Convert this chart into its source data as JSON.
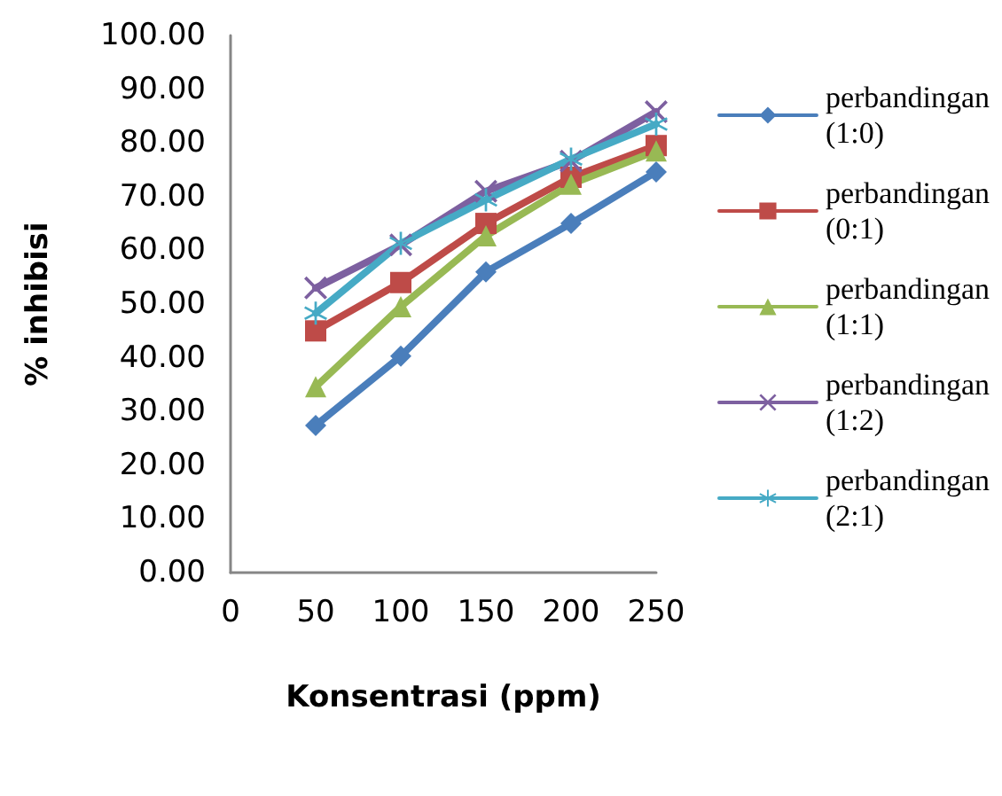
{
  "chart_data": {
    "type": "line",
    "xlabel": "Konsentrasi (ppm)",
    "ylabel": "% inhibisi",
    "x": [
      50,
      100,
      150,
      200,
      250
    ],
    "series": [
      {
        "name": "perbandingan (1:0)",
        "color": "#4a7ebb",
        "marker": "diamond",
        "values": [
          27.4,
          40.3,
          56,
          65,
          74.6
        ]
      },
      {
        "name": "perbandingan (0:1)",
        "color": "#be4b48",
        "marker": "square",
        "values": [
          45,
          54,
          65,
          73.6,
          79.5
        ]
      },
      {
        "name": "perbandingan (1:1)",
        "color": "#98b954",
        "marker": "triangle",
        "values": [
          34.6,
          49.5,
          62.7,
          72.3,
          78.5
        ]
      },
      {
        "name": "perbandingan (1:2)",
        "color": "#7d60a0",
        "marker": "cross",
        "values": [
          53,
          61,
          71,
          76.6,
          85.8
        ]
      },
      {
        "name": "perbandingan (2:1)",
        "color": "#46aac5",
        "marker": "star",
        "values": [
          48.3,
          61.3,
          69.4,
          77,
          83.5
        ]
      }
    ],
    "xlim": [
      0,
      250
    ],
    "xticks": [
      0,
      50,
      100,
      150,
      200,
      250
    ],
    "ylim": [
      0,
      100
    ],
    "yticks": [
      {
        "value": 0,
        "label": "0.00"
      },
      {
        "value": 10,
        "label": "10.00"
      },
      {
        "value": 20,
        "label": "20.00"
      },
      {
        "value": 30,
        "label": "30.00"
      },
      {
        "value": 40,
        "label": "40.00"
      },
      {
        "value": 50,
        "label": "50.00"
      },
      {
        "value": 60,
        "label": "60.00"
      },
      {
        "value": 70,
        "label": "70.00"
      },
      {
        "value": 80,
        "label": "80.00"
      },
      {
        "value": 90,
        "label": "90.00"
      },
      {
        "value": 100,
        "label": "100.00"
      }
    ],
    "grid": false,
    "legend": "right",
    "line_style": "solid"
  }
}
